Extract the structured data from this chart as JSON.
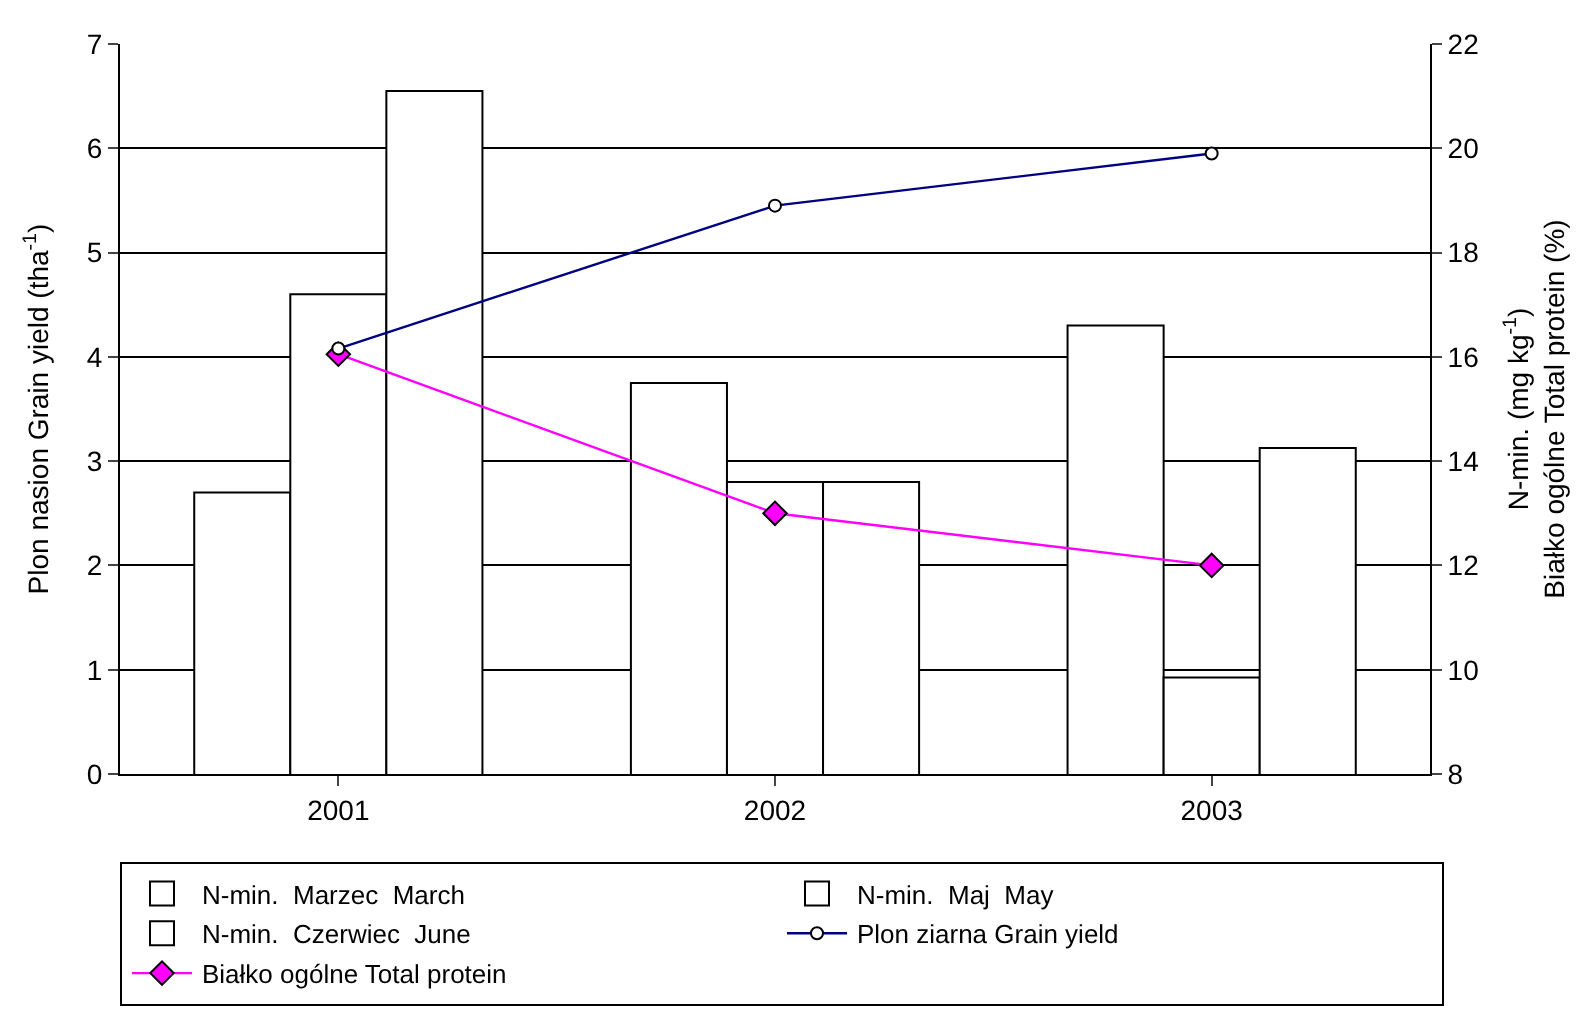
{
  "chart_data": {
    "type": "bar",
    "categories": [
      "2001",
      "2002",
      "2003"
    ],
    "ylabel": "Plon nasion Grain yield (tha$^{-1}$)",
    "y2label": "N-min. (mg kg$^{-1}$)\nBiałko ogólne Total protein (%)",
    "ylim": [
      0,
      7
    ],
    "yticks": [
      0,
      1,
      2,
      3,
      4,
      5,
      6,
      7
    ],
    "y2lim": [
      8,
      22
    ],
    "y2ticks": [
      8,
      10,
      12,
      14,
      16,
      18,
      20,
      22
    ],
    "grid": "y",
    "legend": "bottom",
    "series": [
      {
        "name": "N-min.  Marzec  March",
        "color": "#ffffff",
        "axis": "y2",
        "values": [
          13.4,
          15.5,
          16.6
        ]
      },
      {
        "name": "N-min.  Maj  May",
        "color": "#ffffff",
        "axis": "y2",
        "values": [
          17.2,
          13.6,
          9.85
        ]
      },
      {
        "name": "N-min.  Czerwiec  June",
        "color": "#ffffff",
        "axis": "y2",
        "values": [
          21.1,
          13.6,
          14.25
        ]
      },
      {
        "name": "Plon ziarna Grain yield",
        "type": "line",
        "color": "#000080",
        "axis": "y",
        "marker": "circle",
        "values": [
          4.08,
          5.45,
          5.95
        ]
      },
      {
        "name": "Białko ogólne Total protein",
        "type": "line",
        "color": "#ff00ff",
        "axis": "y2",
        "marker": "diamond",
        "values": [
          16.05,
          13.0,
          12.0
        ]
      }
    ]
  }
}
